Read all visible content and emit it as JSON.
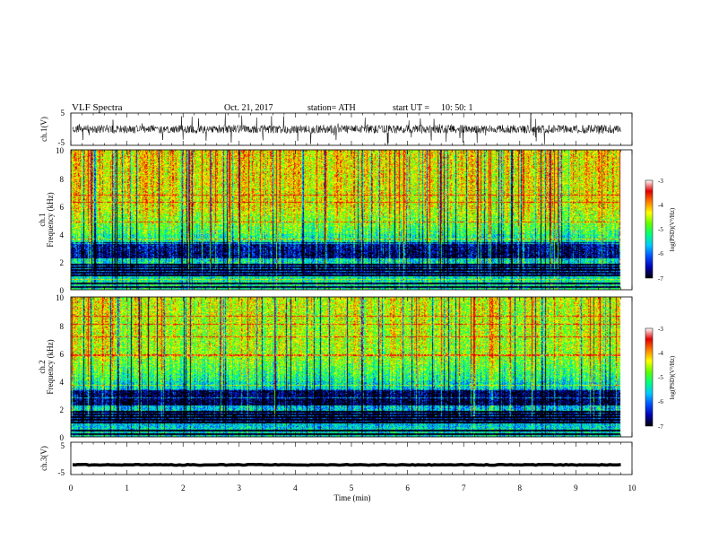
{
  "header": {
    "title": "VLF  Spectra",
    "date": "Oct. 21, 2017",
    "station": "station= ATH",
    "start_label": "start  UT  =",
    "start_time": "10: 50: 1"
  },
  "chart_data": [
    {
      "id": "ch1_waveform",
      "type": "line",
      "ylabel": "ch.1(V)",
      "ylim": [
        -5,
        5
      ],
      "yticks": [
        "5",
        "-5"
      ],
      "xlim": [
        0,
        10
      ],
      "data_xmax": 9.8,
      "baseline": 0,
      "color": "#000000"
    },
    {
      "id": "ch1_spectrogram",
      "type": "heatmap",
      "ylabel_1": "ch.1",
      "ylabel_2": "Frequency  (kHz)",
      "ylim": [
        0,
        10
      ],
      "yticks": [
        "0",
        "2",
        "4",
        "6",
        "8",
        "10"
      ],
      "xlim": [
        0,
        10
      ],
      "data_xmax": 9.8,
      "colorbar": {
        "label": "log(PSD)(V²/Hz)",
        "range": [
          -7,
          -3
        ],
        "ticks": [
          "-3",
          "-4",
          "-5",
          "-6",
          "-7"
        ]
      }
    },
    {
      "id": "ch2_spectrogram",
      "type": "heatmap",
      "ylabel_1": "ch.2",
      "ylabel_2": "Frequency  (kHz)",
      "ylim": [
        0,
        10
      ],
      "yticks": [
        "0",
        "2",
        "4",
        "6",
        "8",
        "10"
      ],
      "xlim": [
        0,
        10
      ],
      "data_xmax": 9.8,
      "colorbar": {
        "label": "log(PSD)(V²/Hz)",
        "range": [
          -7,
          -3
        ],
        "ticks": [
          "-3",
          "-4",
          "-5",
          "-6",
          "-7"
        ]
      }
    },
    {
      "id": "ch3_waveform",
      "type": "line",
      "ylabel": "ch.3(V)",
      "ylim": [
        -5,
        5
      ],
      "yticks": [
        "5",
        "-5"
      ],
      "xlim": [
        0,
        10
      ],
      "data_xmax": 9.8,
      "baseline": -2,
      "color": "#000000"
    }
  ],
  "xaxis": {
    "label": "Time  (min)",
    "ticks": [
      "0",
      "1",
      "2",
      "3",
      "4",
      "5",
      "6",
      "7",
      "8",
      "9",
      "10"
    ],
    "range": [
      0,
      10
    ]
  },
  "colormap": [
    "#000000",
    "#0000b0",
    "#0050ff",
    "#00c8ff",
    "#00ff80",
    "#60ff00",
    "#ffff00",
    "#ff8000",
    "#e00000",
    "#ffffff"
  ]
}
